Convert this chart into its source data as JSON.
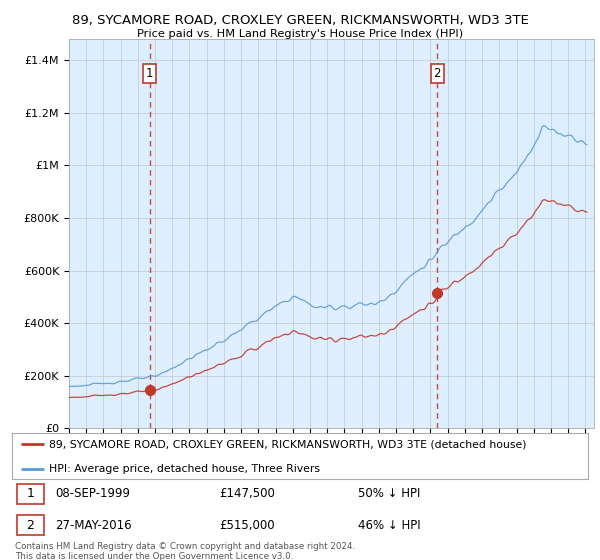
{
  "title_line1": "89, SYCAMORE ROAD, CROXLEY GREEN, RICKMANSWORTH, WD3 3TE",
  "title_line2": "Price paid vs. HM Land Registry's House Price Index (HPI)",
  "ylabel_ticks": [
    "£0",
    "£200K",
    "£400K",
    "£600K",
    "£800K",
    "£1M",
    "£1.2M",
    "£1.4M"
  ],
  "ytick_values": [
    0,
    200000,
    400000,
    600000,
    800000,
    1000000,
    1200000,
    1400000
  ],
  "ylim": [
    0,
    1500000
  ],
  "hpi_color": "#5b9bd5",
  "price_color": "#c0392b",
  "chart_bg": "#ddeeff",
  "sale1_year": 1999.69,
  "sale1_price": 147500,
  "sale2_year": 2016.4,
  "sale2_price": 515000,
  "sale1_label": "1",
  "sale2_label": "2",
  "legend_line1": "89, SYCAMORE ROAD, CROXLEY GREEN, RICKMANSWORTH, WD3 3TE (detached house)",
  "legend_line2": "HPI: Average price, detached house, Three Rivers",
  "footer": "Contains HM Land Registry data © Crown copyright and database right 2024.\nThis data is licensed under the Open Government Licence v3.0.",
  "background_color": "#ffffff",
  "grid_color": "#c0c8d0"
}
